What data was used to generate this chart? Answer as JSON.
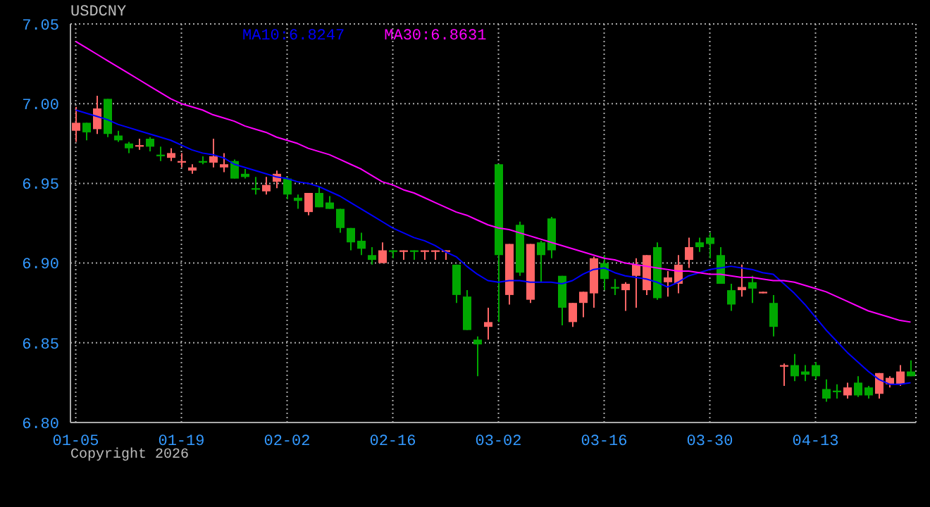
{
  "chart_data": {
    "type": "candlestick",
    "title": "USDCNY",
    "legend": "top",
    "grid": true,
    "categories": [
      "01-05",
      null,
      null,
      null,
      null,
      null,
      null,
      null,
      null,
      null,
      "01-19",
      null,
      null,
      null,
      null,
      null,
      null,
      null,
      null,
      null,
      "02-02",
      null,
      null,
      null,
      null,
      null,
      null,
      null,
      null,
      null,
      "02-16",
      null,
      null,
      null,
      null,
      null,
      null,
      null,
      null,
      null,
      "03-02",
      null,
      null,
      null,
      null,
      null,
      null,
      null,
      null,
      null,
      "03-16",
      null,
      null,
      null,
      null,
      null,
      null,
      null,
      null,
      null,
      "03-30",
      null,
      null,
      null,
      null,
      null,
      null,
      null,
      null,
      null,
      "04-13",
      null,
      null,
      null,
      null,
      null,
      null,
      null,
      null,
      null
    ],
    "ylim": [
      6.8,
      7.05
    ],
    "yticks": [
      {
        "value": 6.8,
        "label": "6.80"
      },
      6.85,
      {
        "value": 6.9,
        "label": "6.90"
      },
      6.95,
      {
        "value": 7.0,
        "label": "7.00"
      },
      7.05
    ],
    "series": [
      {
        "ohlc": [
          [
            6.983,
            6.998,
            6.976,
            6.988
          ],
          [
            6.988,
            6.988,
            6.977,
            6.982
          ],
          [
            6.984,
            7.005,
            6.981,
            6.997
          ],
          [
            7.003,
            7.003,
            6.979,
            6.981
          ],
          [
            6.98,
            6.983,
            6.976,
            6.977
          ],
          [
            6.975,
            6.976,
            6.969,
            6.972
          ],
          [
            6.973,
            6.978,
            6.971,
            6.974
          ],
          [
            6.978,
            6.979,
            6.97,
            6.973
          ],
          [
            6.968,
            6.973,
            6.964,
            6.967
          ],
          [
            6.966,
            6.972,
            6.964,
            6.969
          ],
          [
            6.963,
            6.969,
            6.96,
            6.964
          ],
          [
            6.958,
            6.962,
            6.956,
            6.96
          ],
          [
            6.964,
            6.967,
            6.962,
            6.963
          ],
          [
            6.963,
            6.978,
            6.96,
            6.967
          ],
          [
            6.96,
            6.969,
            6.957,
            6.962
          ],
          [
            6.964,
            6.965,
            6.953,
            6.953
          ],
          [
            6.956,
            6.959,
            6.953,
            6.954
          ],
          [
            6.947,
            6.954,
            6.943,
            6.946
          ],
          [
            6.945,
            6.954,
            6.943,
            6.949
          ],
          [
            6.951,
            6.958,
            6.947,
            6.956
          ],
          [
            6.953,
            6.954,
            6.94,
            6.943
          ],
          [
            6.941,
            6.943,
            6.934,
            6.939
          ],
          [
            6.932,
            6.944,
            6.93,
            6.944
          ],
          [
            6.944,
            6.948,
            6.935,
            6.935
          ],
          [
            6.938,
            6.942,
            6.934,
            6.934
          ],
          [
            6.934,
            6.934,
            6.919,
            6.922
          ],
          [
            6.922,
            6.922,
            6.908,
            6.913
          ],
          [
            6.914,
            6.919,
            6.905,
            6.909
          ],
          [
            6.905,
            6.91,
            6.899,
            6.902
          ],
          [
            6.9,
            6.913,
            6.9,
            6.908
          ],
          [
            6.908,
            6.908,
            6.903,
            6.907
          ],
          [
            6.907,
            6.908,
            6.902,
            6.908
          ],
          [
            6.908,
            6.908,
            6.902,
            6.907
          ],
          [
            6.907,
            6.908,
            6.902,
            6.908
          ],
          [
            6.907,
            6.908,
            6.902,
            6.908
          ],
          [
            6.907,
            6.908,
            6.902,
            6.908
          ],
          [
            6.899,
            6.899,
            6.875,
            6.88
          ],
          [
            6.879,
            6.883,
            6.858,
            6.858
          ],
          [
            6.852,
            6.854,
            6.829,
            6.849
          ],
          [
            6.86,
            6.872,
            6.852,
            6.863
          ],
          [
            6.962,
            6.962,
            6.863,
            6.905
          ],
          [
            6.88,
            6.912,
            6.874,
            6.912
          ],
          [
            6.924,
            6.926,
            6.892,
            6.894
          ],
          [
            6.877,
            6.912,
            6.875,
            6.912
          ],
          [
            6.913,
            6.914,
            6.888,
            6.905
          ],
          [
            6.928,
            6.929,
            6.903,
            6.908
          ],
          [
            6.892,
            6.892,
            6.861,
            6.872
          ],
          [
            6.863,
            6.875,
            6.86,
            6.875
          ],
          [
            6.875,
            6.882,
            6.866,
            6.882
          ],
          [
            6.881,
            6.904,
            6.872,
            6.903
          ],
          [
            6.9,
            6.905,
            6.883,
            6.89
          ],
          [
            6.885,
            6.89,
            6.88,
            6.884
          ],
          [
            6.883,
            6.888,
            6.87,
            6.887
          ],
          [
            6.892,
            6.903,
            6.872,
            6.899
          ],
          [
            6.883,
            6.905,
            6.88,
            6.905
          ],
          [
            6.91,
            6.913,
            6.877,
            6.878
          ],
          [
            6.888,
            6.895,
            6.879,
            6.891
          ],
          [
            6.887,
            6.905,
            6.881,
            6.899
          ],
          [
            6.902,
            6.916,
            6.897,
            6.91
          ],
          [
            6.913,
            6.916,
            6.907,
            6.91
          ],
          [
            6.916,
            6.919,
            6.903,
            6.912
          ],
          [
            6.905,
            6.91,
            6.887,
            6.887
          ],
          [
            6.883,
            6.887,
            6.87,
            6.874
          ],
          [
            6.883,
            6.899,
            6.879,
            6.885
          ],
          [
            6.888,
            6.892,
            6.875,
            6.884
          ],
          [
            6.881,
            6.882,
            6.881,
            6.882
          ],
          [
            6.875,
            6.88,
            6.854,
            6.86
          ],
          [
            6.835,
            6.837,
            6.823,
            6.836
          ],
          [
            6.836,
            6.843,
            6.826,
            6.829
          ],
          [
            6.832,
            6.836,
            6.826,
            6.83
          ],
          [
            6.836,
            6.838,
            6.827,
            6.829
          ],
          [
            6.821,
            6.827,
            6.813,
            6.815
          ],
          [
            6.82,
            6.824,
            6.815,
            6.819
          ],
          [
            6.817,
            6.825,
            6.815,
            6.822
          ],
          [
            6.825,
            6.829,
            6.816,
            6.817
          ],
          [
            6.822,
            6.823,
            6.815,
            6.817
          ],
          [
            6.818,
            6.831,
            6.815,
            6.831
          ],
          [
            6.824,
            6.829,
            6.822,
            6.828
          ],
          [
            6.824,
            6.836,
            6.823,
            6.832
          ],
          [
            6.832,
            6.839,
            6.829,
            6.829
          ]
        ],
        "colors": [
          "#ff6666",
          "#00a800",
          "#ff6666",
          "#00a800",
          "#00a800",
          "#00a800",
          "#ff6666",
          "#00a800",
          "#00a800",
          "#ff6666",
          "#ff6666",
          "#ff6666",
          "#00a800",
          "#ff6666",
          "#ff6666",
          "#00a800",
          "#00a800",
          "#00a800",
          "#ff6666",
          "#ff6666",
          "#00a800",
          "#00a800",
          "#ff6666",
          "#00a800",
          "#00a800",
          "#00a800",
          "#00a800",
          "#00a800",
          "#00a800",
          "#ff6666",
          "#00a800",
          "#ff6666",
          "#00a800",
          "#ff6666",
          "#ff6666",
          "#ff6666",
          "#00a800",
          "#00a800",
          "#00a800",
          "#ff6666",
          "#00a800",
          "#ff6666",
          "#00a800",
          "#ff6666",
          "#00a800",
          "#00a800",
          "#00a800",
          "#ff6666",
          "#ff6666",
          "#ff6666",
          "#00a800",
          "#00a800",
          "#ff6666",
          "#ff6666",
          "#ff6666",
          "#00a800",
          "#ff6666",
          "#ff6666",
          "#ff6666",
          "#00a800",
          "#00a800",
          "#00a800",
          "#00a800",
          "#ff6666",
          "#00a800",
          "#ff6666",
          "#00a800",
          "#ff6666",
          "#00a800",
          "#00a800",
          "#00a800",
          "#00a800",
          "#00a800",
          "#ff6666",
          "#00a800",
          "#00a800",
          "#ff6666",
          "#ff6666",
          "#ff6666",
          "#00a800"
        ]
      },
      {
        "type": "line",
        "name": "MA10:6.8247",
        "color": "#0000ff",
        "values": [
          6.996,
          6.994,
          6.992,
          6.99,
          6.987,
          6.985,
          6.983,
          6.981,
          6.979,
          6.977,
          6.974,
          6.971,
          6.969,
          6.968,
          6.966,
          6.962,
          6.96,
          6.958,
          6.956,
          6.954,
          6.953,
          6.951,
          6.95,
          6.948,
          6.945,
          6.942,
          6.938,
          6.934,
          6.93,
          6.926,
          6.922,
          6.919,
          6.916,
          6.914,
          6.911,
          6.907,
          6.904,
          6.898,
          6.893,
          6.889,
          6.888,
          6.889,
          6.889,
          6.888,
          6.888,
          6.888,
          6.887,
          6.889,
          6.893,
          6.896,
          6.897,
          6.894,
          6.892,
          6.891,
          6.89,
          6.888,
          6.885,
          6.888,
          6.892,
          6.894,
          6.896,
          6.897,
          6.898,
          6.897,
          6.896,
          6.894,
          6.893,
          6.887,
          6.881,
          6.874,
          6.866,
          6.858,
          6.851,
          6.844,
          6.838,
          6.832,
          6.827,
          6.824,
          6.824,
          6.825
        ]
      },
      {
        "type": "line",
        "name": "MA30:6.8631",
        "color": "#ff00ff",
        "values": [
          7.039,
          7.035,
          7.031,
          7.027,
          7.023,
          7.019,
          7.015,
          7.011,
          7.007,
          7.003,
          7.0,
          6.998,
          6.996,
          6.993,
          6.991,
          6.989,
          6.986,
          6.984,
          6.982,
          6.979,
          6.977,
          6.975,
          6.972,
          6.97,
          6.968,
          6.965,
          6.962,
          6.959,
          6.955,
          6.951,
          6.949,
          6.946,
          6.944,
          6.941,
          6.938,
          6.935,
          6.932,
          6.93,
          6.927,
          6.924,
          6.922,
          6.921,
          6.919,
          6.917,
          6.915,
          6.913,
          6.911,
          6.909,
          6.907,
          6.905,
          6.903,
          6.902,
          6.9,
          6.899,
          6.898,
          6.897,
          6.896,
          6.895,
          6.895,
          6.894,
          6.893,
          6.893,
          6.892,
          6.891,
          6.891,
          6.89,
          6.889,
          6.889,
          6.888,
          6.886,
          6.884,
          6.882,
          6.879,
          6.876,
          6.873,
          6.87,
          6.868,
          6.866,
          6.864,
          6.863
        ]
      }
    ],
    "annotations": [
      "Copyright 2026"
    ]
  }
}
